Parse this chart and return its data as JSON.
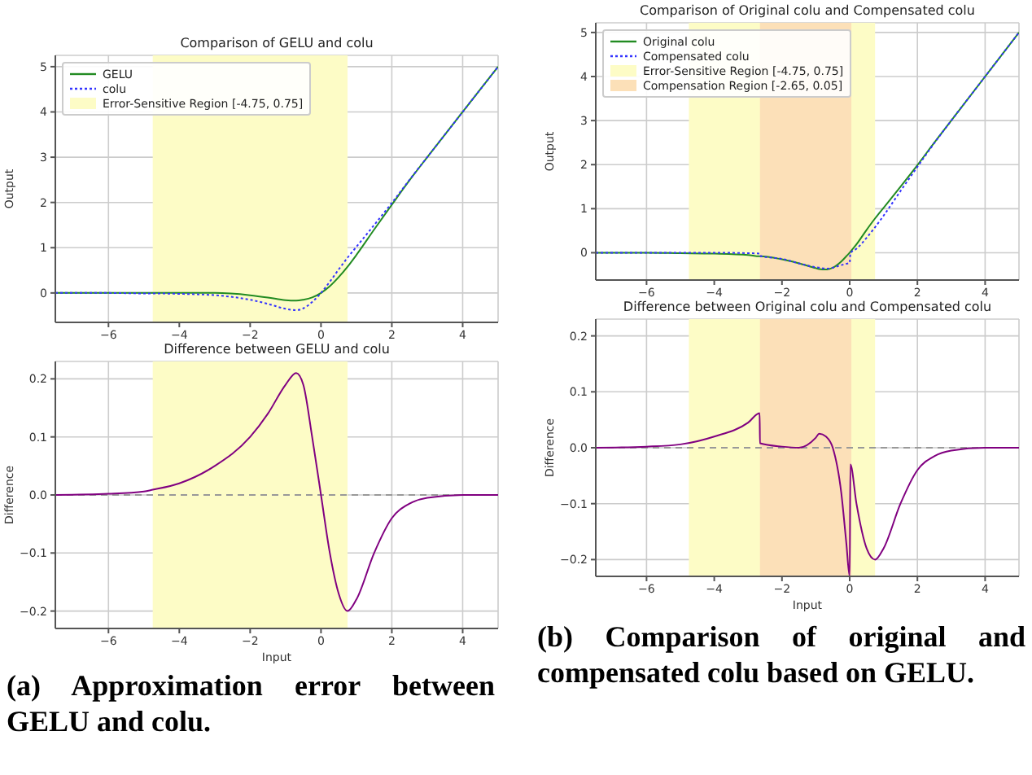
{
  "chart_data": [
    {
      "type": "line",
      "title": "Comparison of GELU and colu",
      "ylabel": "Output",
      "x": [
        -7.5,
        -6,
        -5,
        -4.75,
        -4,
        -3,
        -2,
        -1.5,
        -1,
        -0.7,
        -0.5,
        -0.25,
        0,
        0.25,
        0.5,
        0.75,
        1,
        1.5,
        2,
        2.5,
        3,
        4,
        5
      ],
      "series": [
        {
          "name": "GELU",
          "color": "#228b22",
          "line_style": "solid",
          "values": [
            0,
            0,
            0,
            0,
            0,
            0,
            -0.05,
            -0.1,
            -0.16,
            -0.17,
            -0.15,
            -0.1,
            0,
            0.15,
            0.35,
            0.58,
            0.84,
            1.4,
            1.95,
            2.49,
            3,
            4,
            5
          ]
        },
        {
          "name": "colu",
          "color": "#3333ff",
          "line_style": "dotted",
          "values": [
            0,
            0,
            -0.01,
            -0.01,
            -0.02,
            -0.05,
            -0.15,
            -0.24,
            -0.35,
            -0.38,
            -0.34,
            -0.2,
            0,
            0.25,
            0.52,
            0.78,
            1.02,
            1.5,
            1.99,
            2.5,
            3,
            4,
            5
          ]
        }
      ],
      "bands": [
        {
          "axis": "x",
          "from": -4.75,
          "to": 0.75,
          "label": "Error-Sensitive Region [-4.75, 0.75]",
          "color": "#fdfcc6"
        }
      ],
      "xlim": [
        -7.5,
        5
      ],
      "xticks": [
        {
          "value": -6,
          "label": "−6"
        },
        {
          "value": -4,
          "label": "−4"
        },
        {
          "value": -2,
          "label": "−2"
        },
        0,
        2,
        4
      ],
      "ylim": [
        -0.65,
        5.25
      ],
      "yticks": [
        0,
        1,
        2,
        3,
        4,
        5
      ],
      "grid": true,
      "legend": "top left",
      "marker": "none"
    },
    {
      "type": "line",
      "title": "Difference between GELU and colu",
      "xlabel": "Input",
      "ylabel": "Difference",
      "x": [
        -7.5,
        -6,
        -5,
        -4.75,
        -4,
        -3,
        -2,
        -1.5,
        -1,
        -0.7,
        -0.5,
        -0.25,
        0,
        0.25,
        0.5,
        0.75,
        1,
        1.5,
        2,
        2.5,
        3,
        4,
        5
      ],
      "series": [
        {
          "color": "#800080",
          "line_style": "solid",
          "values": [
            0,
            0.002,
            0.006,
            0.009,
            0.02,
            0.05,
            0.1,
            0.14,
            0.19,
            0.21,
            0.19,
            0.1,
            0,
            -0.1,
            -0.17,
            -0.2,
            -0.18,
            -0.1,
            -0.04,
            -0.015,
            -0.005,
            0,
            0
          ]
        }
      ],
      "bands": [
        {
          "axis": "x",
          "from": -4.75,
          "to": 0.75,
          "color": "#fdfcc6"
        }
      ],
      "ref_lines": [
        {
          "axis": "y",
          "value": 0,
          "color": "#999999",
          "line_style": "dashed"
        }
      ],
      "xlim": [
        -7.5,
        5
      ],
      "xticks": [
        {
          "value": -6,
          "label": "−6"
        },
        {
          "value": -4,
          "label": "−4"
        },
        {
          "value": -2,
          "label": "−2"
        },
        0,
        2,
        4
      ],
      "ylim": [
        -0.23,
        0.23
      ],
      "yticks": [
        {
          "value": -0.2,
          "label": "−0.2"
        },
        {
          "value": -0.1,
          "label": "−0.1"
        },
        {
          "value": 0,
          "label": "0.0"
        },
        0.1,
        0.2
      ],
      "grid": true,
      "marker": "none",
      "annotations": [
        "(a) Approximation error between GELU and colu."
      ]
    },
    {
      "type": "line",
      "title": "Comparison of Original colu and Compensated colu",
      "ylabel": "Output",
      "x": [
        -7.5,
        -6,
        -5,
        -4,
        -3,
        -2.66,
        -2.65,
        -2,
        -1.5,
        -1,
        -0.9,
        -0.7,
        -0.5,
        -0.25,
        -0.1,
        0,
        0.02,
        0.2,
        0.5,
        0.75,
        1,
        1.5,
        2,
        2.5,
        3,
        4,
        5
      ],
      "series": [
        {
          "name": "Original colu",
          "color": "#228b22",
          "line_style": "solid",
          "values": [
            0,
            0,
            -0.01,
            -0.02,
            -0.05,
            -0.08,
            -0.08,
            -0.15,
            -0.24,
            -0.35,
            -0.37,
            -0.38,
            -0.34,
            -0.2,
            -0.08,
            0,
            0.02,
            0.19,
            0.52,
            0.78,
            1.02,
            1.5,
            1.99,
            2.5,
            3,
            4,
            5
          ]
        },
        {
          "name": "Compensated colu",
          "color": "#3333ff",
          "line_style": "dotted",
          "values": [
            0,
            0,
            0,
            0,
            -0.01,
            -0.02,
            -0.07,
            -0.14,
            -0.24,
            -0.33,
            -0.34,
            -0.36,
            -0.34,
            -0.28,
            -0.25,
            -0.23,
            -0.01,
            0.09,
            0.34,
            0.58,
            0.84,
            1.4,
            1.95,
            2.49,
            3,
            4,
            5
          ]
        }
      ],
      "bands": [
        {
          "axis": "x",
          "from": -4.75,
          "to": 0.75,
          "label": "Error-Sensitive Region [-4.75, 0.75]",
          "color": "#fdfcc6"
        },
        {
          "axis": "x",
          "from": -2.65,
          "to": 0.05,
          "label": "Compensation Region [-2.65, 0.05]",
          "color": "#fce0b8"
        }
      ],
      "xlim": [
        -7.5,
        5
      ],
      "xticks": [
        {
          "value": -6,
          "label": "−6"
        },
        {
          "value": -4,
          "label": "−4"
        },
        {
          "value": -2,
          "label": "−2"
        },
        0,
        2,
        4
      ],
      "ylim": [
        -0.62,
        5.22
      ],
      "yticks": [
        0,
        1,
        2,
        3,
        4,
        5
      ],
      "grid": true,
      "legend": "top left",
      "marker": "none"
    },
    {
      "type": "line",
      "title": "Difference between Original colu and Compensated colu",
      "xlabel": "Input",
      "ylabel": "Difference",
      "x": [
        -7.5,
        -6,
        -5,
        -4,
        -3,
        -2.66,
        -2.65,
        -2,
        -1.5,
        -1,
        -0.9,
        -0.7,
        -0.5,
        -0.25,
        -0.1,
        0,
        0.02,
        0.2,
        0.5,
        0.75,
        1,
        1.5,
        2,
        2.5,
        3,
        4,
        5
      ],
      "series": [
        {
          "color": "#800080",
          "line_style": "solid",
          "values": [
            0,
            0.002,
            0.006,
            0.02,
            0.045,
            0.062,
            0.008,
            0.002,
            0,
            0.018,
            0.025,
            0.02,
            0,
            -0.08,
            -0.17,
            -0.23,
            -0.03,
            -0.1,
            -0.18,
            -0.2,
            -0.18,
            -0.1,
            -0.04,
            -0.015,
            -0.005,
            0,
            0
          ]
        }
      ],
      "bands": [
        {
          "axis": "x",
          "from": -4.75,
          "to": 0.75,
          "color": "#fdfcc6"
        },
        {
          "axis": "x",
          "from": -2.65,
          "to": 0.05,
          "color": "#fce0b8"
        }
      ],
      "ref_lines": [
        {
          "axis": "y",
          "value": 0,
          "color": "#999999",
          "line_style": "dashed"
        }
      ],
      "xlim": [
        -7.5,
        5
      ],
      "xticks": [
        {
          "value": -6,
          "label": "−6"
        },
        {
          "value": -4,
          "label": "−4"
        },
        {
          "value": -2,
          "label": "−2"
        },
        0,
        2,
        4
      ],
      "ylim": [
        -0.23,
        0.23
      ],
      "yticks": [
        {
          "value": -0.2,
          "label": "−0.2"
        },
        {
          "value": -0.1,
          "label": "−0.1"
        },
        {
          "value": 0,
          "label": "0.0"
        },
        0.1,
        0.2
      ],
      "grid": true,
      "marker": "none",
      "annotations": [
        "(b) Comparison of original and compensated colu based on GELU."
      ]
    }
  ]
}
